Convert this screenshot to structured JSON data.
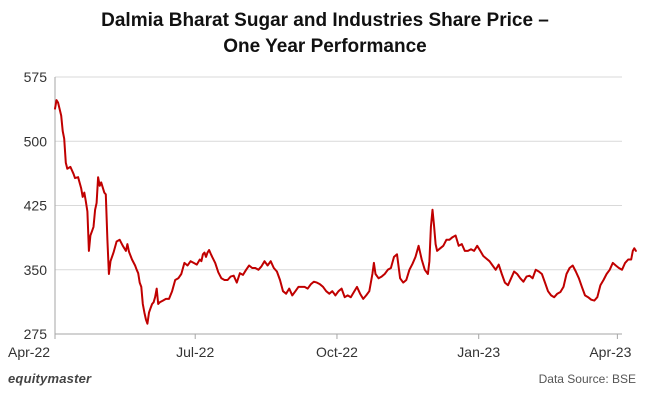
{
  "chart_data": {
    "type": "line",
    "title_line1": "Dalmia Bharat Sugar and Industries Share Price –",
    "title_line2": "One Year Performance",
    "xlabel": "",
    "ylabel": "",
    "ylim": [
      275,
      575
    ],
    "yticks": [
      "275",
      "350",
      "425",
      "500",
      "575"
    ],
    "xticks": [
      {
        "label": "Apr-22",
        "x": 0
      },
      {
        "label": "Jul-22",
        "x": 91
      },
      {
        "label": "Oct-22",
        "x": 183
      },
      {
        "label": "Jan-23",
        "x": 275
      },
      {
        "label": "Apr-23",
        "x": 365
      }
    ],
    "grid": true,
    "line_color": "#c00000",
    "series": [
      {
        "name": "Share Price",
        "points": [
          [
            0,
            538
          ],
          [
            1,
            548
          ],
          [
            2,
            545
          ],
          [
            4,
            530
          ],
          [
            5,
            512
          ],
          [
            6,
            503
          ],
          [
            7,
            475
          ],
          [
            8,
            468
          ],
          [
            10,
            470
          ],
          [
            12,
            462
          ],
          [
            13,
            457
          ],
          [
            15,
            458
          ],
          [
            17,
            445
          ],
          [
            18,
            435
          ],
          [
            19,
            440
          ],
          [
            20,
            430
          ],
          [
            21,
            418
          ],
          [
            22,
            372
          ],
          [
            23,
            390
          ],
          [
            24,
            395
          ],
          [
            25,
            400
          ],
          [
            26,
            420
          ],
          [
            27,
            428
          ],
          [
            28,
            458
          ],
          [
            29,
            448
          ],
          [
            30,
            452
          ],
          [
            32,
            440
          ],
          [
            33,
            438
          ],
          [
            34,
            385
          ],
          [
            35,
            345
          ],
          [
            36,
            360
          ],
          [
            38,
            370
          ],
          [
            40,
            383
          ],
          [
            42,
            385
          ],
          [
            44,
            378
          ],
          [
            46,
            372
          ],
          [
            47,
            380
          ],
          [
            48,
            371
          ],
          [
            50,
            362
          ],
          [
            52,
            355
          ],
          [
            53,
            350
          ],
          [
            54,
            346
          ],
          [
            55,
            335
          ],
          [
            56,
            330
          ],
          [
            57,
            310
          ],
          [
            58,
            300
          ],
          [
            59,
            292
          ],
          [
            60,
            287
          ],
          [
            61,
            300
          ],
          [
            62,
            305
          ],
          [
            63,
            310
          ],
          [
            64,
            312
          ],
          [
            65,
            318
          ],
          [
            66,
            328
          ],
          [
            67,
            310
          ],
          [
            68,
            312
          ],
          [
            70,
            314
          ],
          [
            72,
            316
          ],
          [
            74,
            316
          ],
          [
            76,
            325
          ],
          [
            78,
            338
          ],
          [
            80,
            340
          ],
          [
            82,
            345
          ],
          [
            84,
            358
          ],
          [
            86,
            355
          ],
          [
            88,
            360
          ],
          [
            90,
            358
          ],
          [
            92,
            356
          ],
          [
            94,
            362
          ],
          [
            95,
            360
          ],
          [
            96,
            368
          ],
          [
            97,
            370
          ],
          [
            98,
            365
          ],
          [
            99,
            370
          ],
          [
            100,
            373
          ],
          [
            101,
            369
          ],
          [
            102,
            365
          ],
          [
            104,
            358
          ],
          [
            106,
            347
          ],
          [
            108,
            340
          ],
          [
            110,
            338
          ],
          [
            112,
            338
          ],
          [
            114,
            342
          ],
          [
            116,
            343
          ],
          [
            118,
            335
          ],
          [
            120,
            346
          ],
          [
            122,
            344
          ],
          [
            124,
            350
          ],
          [
            126,
            355
          ],
          [
            128,
            352
          ],
          [
            130,
            352
          ],
          [
            132,
            350
          ],
          [
            134,
            354
          ],
          [
            136,
            360
          ],
          [
            138,
            355
          ],
          [
            140,
            360
          ],
          [
            142,
            352
          ],
          [
            144,
            348
          ],
          [
            146,
            338
          ],
          [
            148,
            325
          ],
          [
            150,
            322
          ],
          [
            152,
            328
          ],
          [
            154,
            320
          ],
          [
            156,
            325
          ],
          [
            158,
            330
          ],
          [
            160,
            330
          ],
          [
            162,
            330
          ],
          [
            164,
            328
          ],
          [
            166,
            333
          ],
          [
            168,
            336
          ],
          [
            170,
            335
          ],
          [
            172,
            333
          ],
          [
            174,
            330
          ],
          [
            176,
            325
          ],
          [
            178,
            322
          ],
          [
            180,
            325
          ],
          [
            182,
            320
          ],
          [
            184,
            325
          ],
          [
            186,
            328
          ],
          [
            188,
            318
          ],
          [
            190,
            320
          ],
          [
            192,
            318
          ],
          [
            194,
            324
          ],
          [
            196,
            330
          ],
          [
            198,
            322
          ],
          [
            200,
            316
          ],
          [
            202,
            320
          ],
          [
            204,
            325
          ],
          [
            206,
            345
          ],
          [
            207,
            358
          ],
          [
            208,
            345
          ],
          [
            210,
            340
          ],
          [
            212,
            342
          ],
          [
            214,
            345
          ],
          [
            216,
            350
          ],
          [
            218,
            352
          ],
          [
            220,
            365
          ],
          [
            222,
            368
          ],
          [
            224,
            340
          ],
          [
            226,
            335
          ],
          [
            228,
            338
          ],
          [
            230,
            350
          ],
          [
            232,
            357
          ],
          [
            234,
            365
          ],
          [
            236,
            378
          ],
          [
            238,
            362
          ],
          [
            240,
            350
          ],
          [
            242,
            345
          ],
          [
            243,
            360
          ],
          [
            244,
            400
          ],
          [
            245,
            420
          ],
          [
            246,
            402
          ],
          [
            247,
            380
          ],
          [
            248,
            372
          ],
          [
            250,
            375
          ],
          [
            252,
            378
          ],
          [
            254,
            385
          ],
          [
            256,
            385
          ],
          [
            258,
            388
          ],
          [
            260,
            390
          ],
          [
            262,
            378
          ],
          [
            264,
            380
          ],
          [
            266,
            372
          ],
          [
            268,
            372
          ],
          [
            270,
            374
          ],
          [
            272,
            372
          ],
          [
            274,
            378
          ],
          [
            276,
            372
          ],
          [
            278,
            366
          ],
          [
            280,
            363
          ],
          [
            282,
            360
          ],
          [
            284,
            355
          ],
          [
            286,
            350
          ],
          [
            288,
            356
          ],
          [
            290,
            345
          ],
          [
            292,
            335
          ],
          [
            294,
            332
          ],
          [
            296,
            340
          ],
          [
            298,
            348
          ],
          [
            300,
            345
          ],
          [
            302,
            340
          ],
          [
            304,
            336
          ],
          [
            306,
            342
          ],
          [
            308,
            343
          ],
          [
            310,
            340
          ],
          [
            312,
            350
          ],
          [
            314,
            348
          ],
          [
            316,
            345
          ],
          [
            318,
            335
          ],
          [
            320,
            325
          ],
          [
            322,
            320
          ],
          [
            324,
            318
          ],
          [
            326,
            322
          ],
          [
            328,
            324
          ],
          [
            330,
            330
          ],
          [
            332,
            345
          ],
          [
            334,
            352
          ],
          [
            336,
            355
          ],
          [
            338,
            348
          ],
          [
            340,
            340
          ],
          [
            342,
            330
          ],
          [
            344,
            320
          ],
          [
            346,
            318
          ],
          [
            348,
            315
          ],
          [
            350,
            314
          ],
          [
            352,
            318
          ],
          [
            354,
            332
          ],
          [
            356,
            338
          ],
          [
            358,
            345
          ],
          [
            360,
            350
          ],
          [
            362,
            358
          ],
          [
            364,
            355
          ],
          [
            366,
            352
          ],
          [
            368,
            350
          ],
          [
            370,
            358
          ],
          [
            372,
            362
          ],
          [
            374,
            362
          ],
          [
            375,
            372
          ],
          [
            376,
            375
          ],
          [
            377,
            372
          ]
        ]
      }
    ]
  },
  "footer": {
    "brand": "equitymaster",
    "source": "Data Source: BSE"
  }
}
